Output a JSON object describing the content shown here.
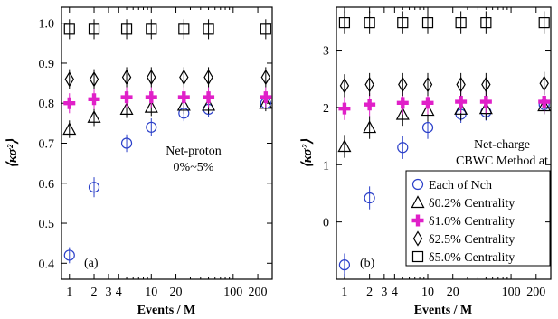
{
  "chart_data": [
    {
      "type": "scatter",
      "panel_label": "(a)",
      "annotation": [
        "Net-proton",
        "0%~5%"
      ],
      "xlabel": "Events / M",
      "ylabel": "⟨κσ²⟩",
      "xscale": "log",
      "xlim": [
        0.8,
        300
      ],
      "ylim": [
        0.36,
        1.04
      ],
      "xticks": [
        1,
        2,
        3,
        4,
        10,
        20,
        100,
        200
      ],
      "xtick_labels": [
        "1",
        "2",
        "3",
        "4",
        "10",
        "20",
        "100",
        "200"
      ],
      "yticks": [
        0.4,
        0.5,
        0.6,
        0.7,
        0.8,
        0.9,
        1.0
      ],
      "ytick_labels": [
        "0.4",
        "0.5",
        "0.6",
        "0.7",
        "0.8",
        "0.9",
        "1.0"
      ],
      "x": [
        1,
        2,
        5,
        10,
        25,
        50,
        250
      ],
      "series": [
        {
          "marker": "circle",
          "color": "#2a3fc9",
          "y": [
            0.42,
            0.59,
            0.7,
            0.74,
            0.775,
            0.785,
            0.8
          ],
          "err": [
            0.02,
            0.025,
            0.022,
            0.022,
            0.02,
            0.02,
            0.015
          ]
        },
        {
          "marker": "triangle",
          "color": "#000000",
          "y": [
            0.735,
            0.765,
            0.785,
            0.79,
            0.795,
            0.795,
            0.8
          ],
          "err": [
            0.022,
            0.022,
            0.022,
            0.022,
            0.022,
            0.022,
            0.02
          ]
        },
        {
          "marker": "plus",
          "color": "#e020c8",
          "y": [
            0.8,
            0.81,
            0.815,
            0.815,
            0.815,
            0.815,
            0.815
          ],
          "err": [
            0.025,
            0.025,
            0.025,
            0.025,
            0.025,
            0.025,
            0.025
          ]
        },
        {
          "marker": "diamond",
          "color": "#000000",
          "y": [
            0.86,
            0.86,
            0.865,
            0.865,
            0.865,
            0.865,
            0.865
          ],
          "err": [
            0.025,
            0.025,
            0.025,
            0.025,
            0.025,
            0.025,
            0.025
          ]
        },
        {
          "marker": "square",
          "color": "#000000",
          "y": [
            0.985,
            0.985,
            0.985,
            0.985,
            0.985,
            0.985,
            0.985
          ],
          "err": [
            0.025,
            0.025,
            0.025,
            0.025,
            0.025,
            0.025,
            0.025
          ]
        }
      ]
    },
    {
      "type": "scatter",
      "panel_label": "(b)",
      "annotation": [
        "Net-charge",
        "CBWC Method at"
      ],
      "xlabel": "Events / M",
      "ylabel": "⟨κσ²⟩",
      "xscale": "log",
      "xlim": [
        0.8,
        300
      ],
      "ylim": [
        -1.0,
        3.75
      ],
      "xticks": [
        1,
        2,
        3,
        4,
        10,
        20,
        100,
        200
      ],
      "xtick_labels": [
        "1",
        "2",
        "3",
        "4",
        "10",
        "20",
        "100",
        "200"
      ],
      "yticks": [
        0,
        1,
        2,
        3
      ],
      "ytick_labels": [
        "0",
        "1",
        "2",
        "3"
      ],
      "x": [
        1,
        2,
        5,
        10,
        25,
        50,
        250
      ],
      "legend": {
        "placement": "bottom-right",
        "entries": [
          "Each of Nch",
          "δ0.2% Centrality",
          "δ1.0% Centrality",
          "δ2.5% Centrality",
          "δ5.0% Centrality"
        ]
      },
      "series": [
        {
          "marker": "circle",
          "color": "#2a3fc9",
          "y": [
            -0.75,
            0.42,
            1.3,
            1.65,
            1.88,
            1.92,
            2.05
          ],
          "err": [
            0.2,
            0.2,
            0.2,
            0.2,
            0.15,
            0.15,
            0.15
          ]
        },
        {
          "marker": "triangle",
          "color": "#000000",
          "y": [
            1.32,
            1.65,
            1.88,
            1.95,
            1.97,
            1.98,
            2.03
          ],
          "err": [
            0.2,
            0.2,
            0.2,
            0.2,
            0.2,
            0.2,
            0.15
          ]
        },
        {
          "marker": "plus",
          "color": "#e020c8",
          "y": [
            1.98,
            2.05,
            2.08,
            2.08,
            2.1,
            2.1,
            2.1
          ],
          "err": [
            0.2,
            0.2,
            0.2,
            0.2,
            0.2,
            0.2,
            0.2
          ]
        },
        {
          "marker": "diamond",
          "color": "#000000",
          "y": [
            2.38,
            2.4,
            2.4,
            2.4,
            2.4,
            2.4,
            2.42
          ],
          "err": [
            0.2,
            0.2,
            0.2,
            0.2,
            0.2,
            0.2,
            0.2
          ]
        },
        {
          "marker": "square",
          "color": "#000000",
          "y": [
            3.48,
            3.48,
            3.48,
            3.48,
            3.48,
            3.48,
            3.48
          ],
          "err": [
            0.2,
            0.2,
            0.2,
            0.2,
            0.2,
            0.2,
            0.2
          ]
        }
      ]
    }
  ]
}
